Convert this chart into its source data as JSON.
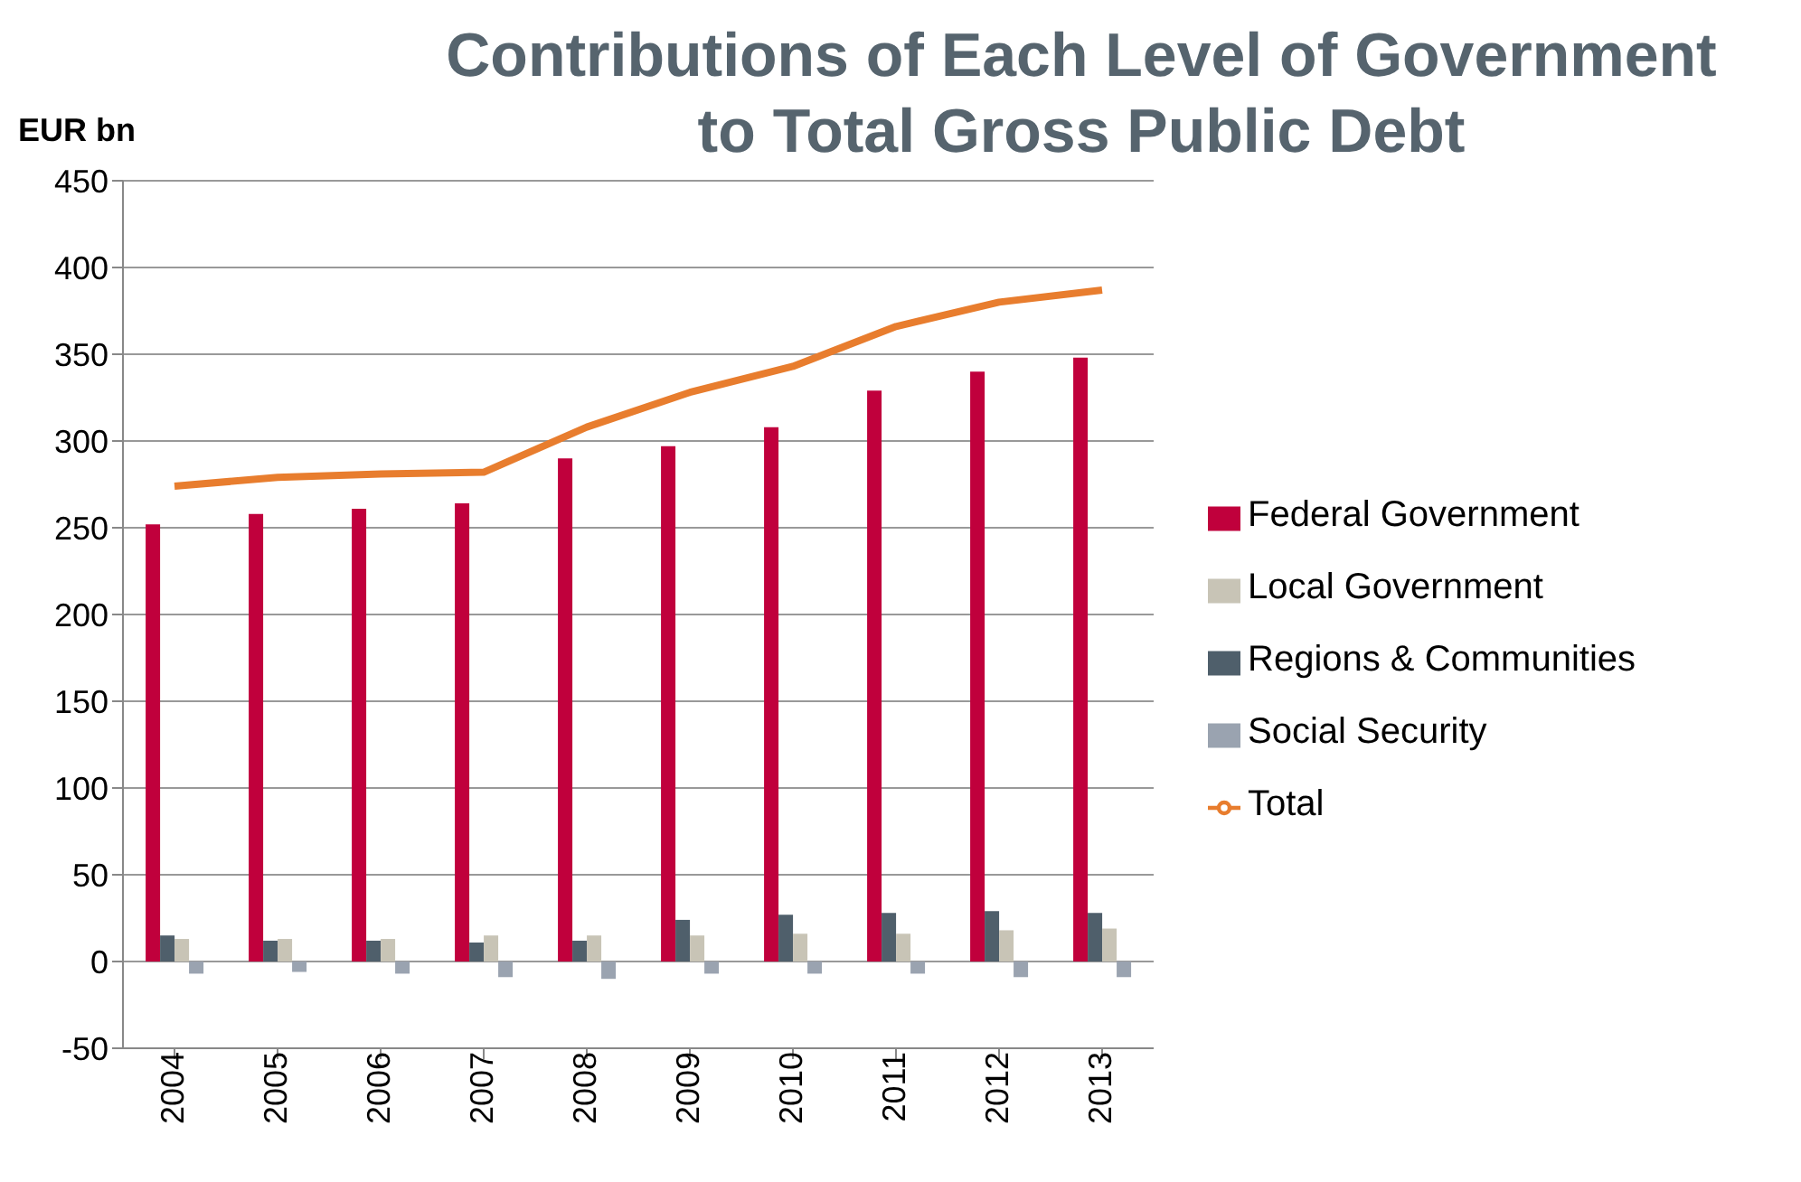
{
  "chart_data": {
    "type": "bar",
    "title": "Contributions of Each Level of Government to Total Gross Public Debt",
    "ylabel": "EUR bn",
    "categories": [
      "2004",
      "2005",
      "2006",
      "2007",
      "2008",
      "2009",
      "2010",
      "2011",
      "2012",
      "2013"
    ],
    "series": [
      {
        "name": "Federal Government",
        "color": "#c0003c",
        "values": [
          252,
          258,
          261,
          264,
          290,
          297,
          308,
          329,
          340,
          348
        ]
      },
      {
        "name": "Regions & Communities",
        "color": "#4f5f6b",
        "values": [
          15,
          12,
          12,
          11,
          12,
          24,
          27,
          28,
          29,
          28
        ]
      },
      {
        "name": "Local Government",
        "color": "#c8c4b6",
        "values": [
          13,
          13,
          13,
          15,
          15,
          15,
          16,
          16,
          18,
          19
        ]
      },
      {
        "name": "Social Security",
        "color": "#9aa3b0",
        "values": [
          -7,
          -6,
          -7,
          -9,
          -10,
          -7,
          -7,
          -7,
          -9,
          -9
        ]
      },
      {
        "name": "Total",
        "type": "line",
        "color": "#e87d2e",
        "values": [
          274,
          279,
          281,
          282,
          308,
          328,
          343,
          366,
          380,
          387
        ]
      }
    ],
    "ylim": [
      -50,
      450
    ],
    "yticks": [
      -50,
      0,
      50,
      100,
      150,
      200,
      250,
      300,
      350,
      400,
      450
    ],
    "grid": "y",
    "legend": "right",
    "marker": "none"
  }
}
